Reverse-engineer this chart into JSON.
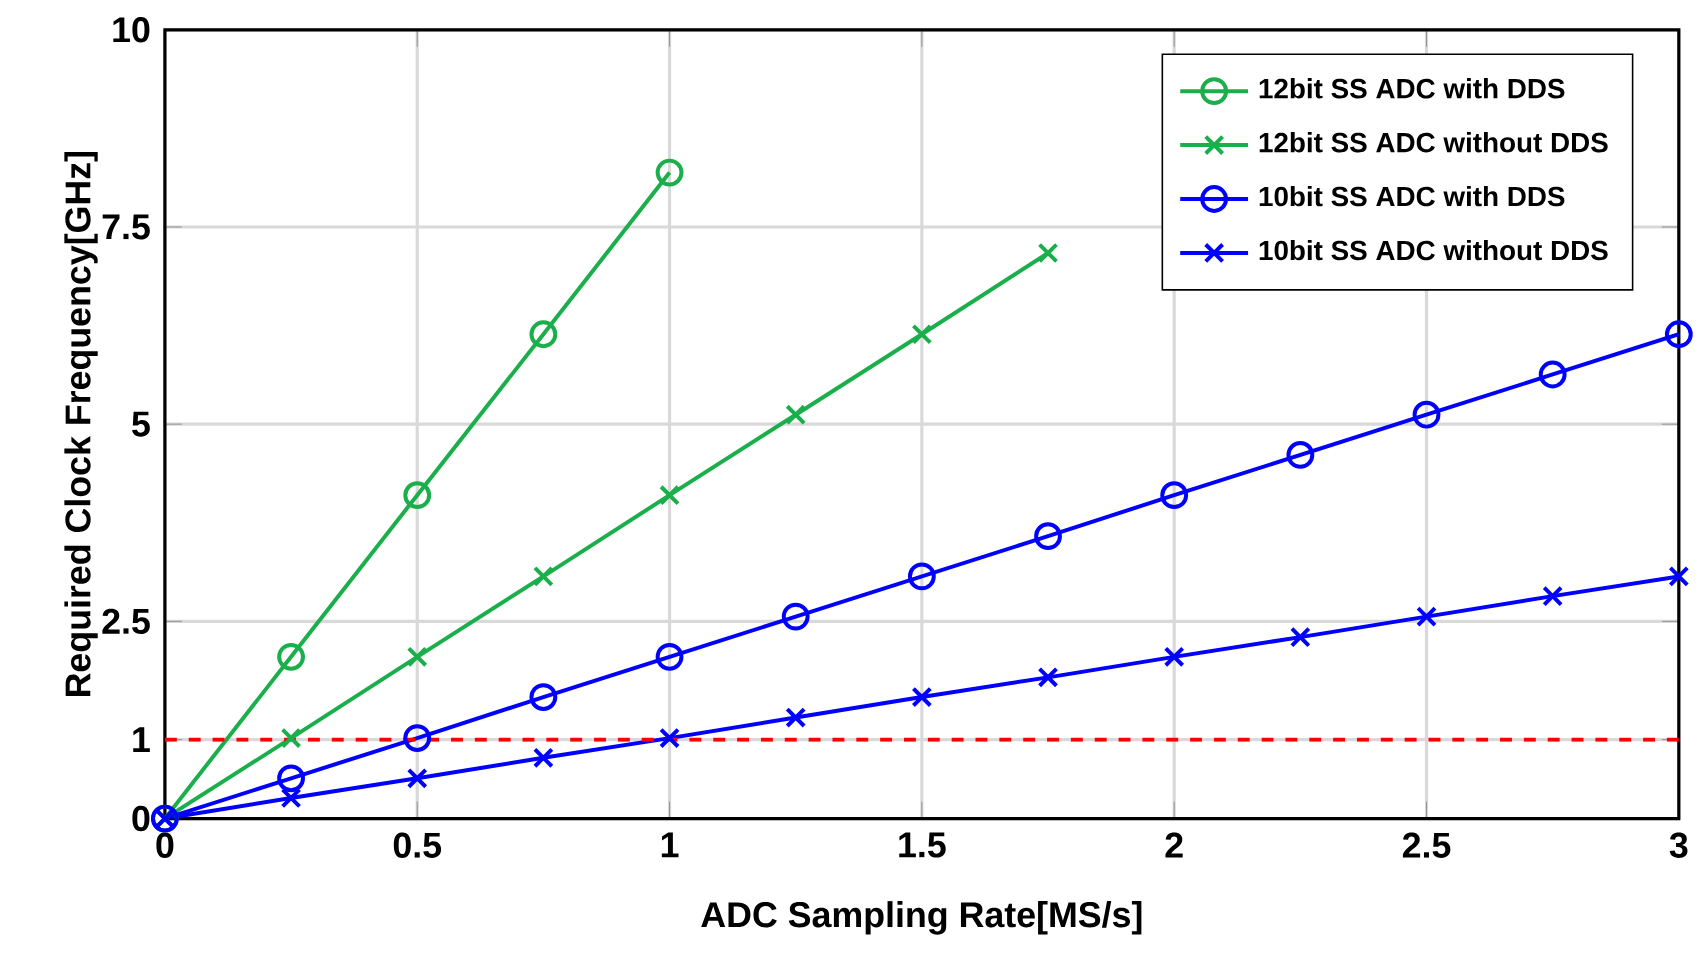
{
  "chart_data": {
    "type": "line",
    "xlabel": "ADC Sampling Rate[MS/s]",
    "ylabel": "Required Clock Frequency[GHz]",
    "x": [
      0,
      0.25,
      0.5,
      0.75,
      1,
      1.25,
      1.5,
      1.75,
      2,
      2.25,
      2.5,
      2.75,
      3
    ],
    "series": [
      {
        "name": "12bit SS ADC with DDS",
        "color": "#1aaf4b",
        "marker": "circle",
        "values": [
          0,
          2.05,
          4.1,
          6.14,
          8.19,
          null,
          null,
          null,
          null,
          null,
          null,
          null,
          null
        ]
      },
      {
        "name": "12bit SS ADC without DDS",
        "color": "#1aaf4b",
        "marker": "cross",
        "values": [
          0,
          1.02,
          2.05,
          3.07,
          4.1,
          5.12,
          6.14,
          7.17,
          null,
          null,
          null,
          null,
          null
        ]
      },
      {
        "name": "10bit SS ADC with DDS",
        "color": "#0000ff",
        "marker": "circle",
        "values": [
          0,
          0.51,
          1.02,
          1.54,
          2.05,
          2.56,
          3.07,
          3.58,
          4.1,
          4.61,
          5.12,
          5.63,
          6.14
        ]
      },
      {
        "name": "10bit SS ADC without DDS",
        "color": "#0000ff",
        "marker": "cross",
        "values": [
          0,
          0.26,
          0.51,
          0.77,
          1.02,
          1.28,
          1.54,
          1.79,
          2.05,
          2.3,
          2.56,
          2.82,
          3.07
        ]
      }
    ],
    "xlim": [
      0,
      3
    ],
    "xticks": [
      0,
      0.5,
      1,
      1.5,
      2,
      2.5,
      3
    ],
    "ylim": [
      0,
      10
    ],
    "yticks": [
      0,
      1,
      2.5,
      5,
      7.5,
      10
    ],
    "ref_lines": [
      {
        "axis": "y",
        "value": 1,
        "color": "#ff0000",
        "line_style": "dashed"
      }
    ],
    "grid": true,
    "legend": "top right",
    "line_style": "solid"
  }
}
